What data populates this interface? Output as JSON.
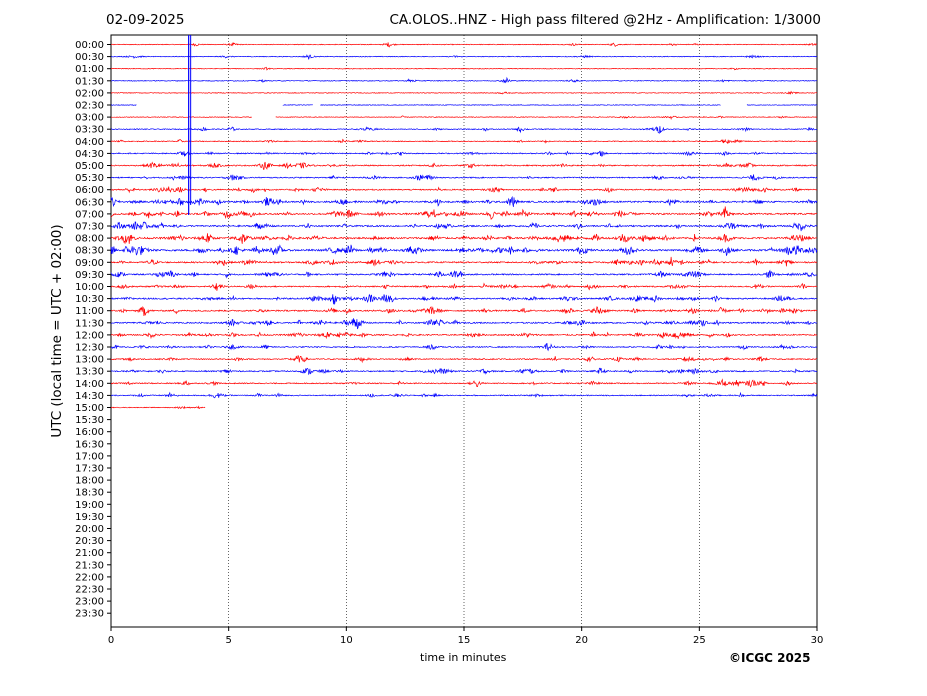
{
  "header": {
    "date": "02-09-2025",
    "station_title": "CA.OLOS..HNZ - High pass filtered @2Hz - Amplification: 1/3000"
  },
  "footer": {
    "copyright": "©ICGC 2025"
  },
  "chart_data": {
    "type": "line",
    "title": "CA.OLOS..HNZ - High pass filtered @2Hz - Amplification: 1/3000",
    "xlabel": "time in minutes",
    "ylabel": "UTC (local time = UTC + 02:00)",
    "xlim": [
      0,
      30
    ],
    "xticks": [
      0,
      5,
      10,
      15,
      20,
      25,
      30
    ],
    "grid": "vertical dotted at x ticks",
    "colors": {
      "odd": "#ff0000",
      "even": "#0000ff"
    },
    "row_labels": [
      "00:00",
      "00:30",
      "01:00",
      "01:30",
      "02:00",
      "02:30",
      "03:00",
      "03:30",
      "04:00",
      "04:30",
      "05:00",
      "05:30",
      "06:00",
      "06:30",
      "07:00",
      "07:30",
      "08:00",
      "08:30",
      "09:00",
      "09:30",
      "10:00",
      "10:30",
      "11:00",
      "11:30",
      "12:00",
      "12:30",
      "13:00",
      "13:30",
      "14:00",
      "14:30",
      "15:00",
      "15:30",
      "16:00",
      "16:30",
      "17:00",
      "17:30",
      "18:00",
      "18:30",
      "19:00",
      "19:30",
      "20:00",
      "20:30",
      "21:00",
      "21:30",
      "22:00",
      "22:30",
      "23:00",
      "23:30"
    ],
    "rows_recorded": 31,
    "last_row_end_minute": 4.0,
    "row_activity": [
      0.1,
      0.1,
      0.05,
      0.1,
      0.05,
      0.05,
      0.1,
      0.2,
      0.2,
      0.35,
      0.45,
      0.4,
      0.45,
      0.7,
      0.75,
      0.65,
      0.8,
      0.9,
      0.6,
      0.55,
      0.5,
      0.6,
      0.6,
      0.55,
      0.5,
      0.4,
      0.4,
      0.45,
      0.4,
      0.3,
      0.05
    ],
    "gaps": [
      {
        "row": "02:30",
        "from": 1.1,
        "to": 7.3
      },
      {
        "row": "02:30",
        "from": 8.6,
        "to": 8.9
      },
      {
        "row": "02:30",
        "from": 25.9,
        "to": 27.0
      },
      {
        "row": "03:00",
        "from": 6.0,
        "to": 7.0
      }
    ],
    "events": [
      {
        "row": "00:00",
        "minute": 11.8,
        "amp": 0.5
      },
      {
        "row": "00:00",
        "minute": 21.4,
        "amp": 0.4
      },
      {
        "row": "00:00",
        "minute": 3.6,
        "amp": 0.3
      },
      {
        "row": "00:30",
        "minute": 8.4,
        "amp": 0.5
      },
      {
        "row": "01:30",
        "minute": 16.8,
        "amp": 0.7
      },
      {
        "row": "02:30",
        "minute": 3.3,
        "amp": 6.0
      },
      {
        "row": "03:30",
        "minute": 5.1,
        "amp": 0.6
      },
      {
        "row": "03:30",
        "minute": 17.4,
        "amp": 0.6
      },
      {
        "row": "03:30",
        "minute": 23.3,
        "amp": 0.9
      },
      {
        "row": "04:00",
        "minute": 9.9,
        "amp": 0.5
      },
      {
        "row": "04:30",
        "minute": 3.1,
        "amp": 0.8
      },
      {
        "row": "05:00",
        "minute": 19.2,
        "amp": 0.6
      },
      {
        "row": "05:00",
        "minute": 27.1,
        "amp": 0.6
      },
      {
        "row": "06:30",
        "minute": 6.6,
        "amp": 0.8
      },
      {
        "row": "06:30",
        "minute": 17.0,
        "amp": 0.9
      },
      {
        "row": "07:00",
        "minute": 1.6,
        "amp": 0.9
      },
      {
        "row": "07:00",
        "minute": 26.1,
        "amp": 1.3
      },
      {
        "row": "08:00",
        "minute": 19.3,
        "amp": 0.8
      },
      {
        "row": "08:30",
        "minute": 6.2,
        "amp": 1.0
      },
      {
        "row": "09:00",
        "minute": 23.2,
        "amp": 0.8
      },
      {
        "row": "10:00",
        "minute": 4.5,
        "amp": 1.0
      },
      {
        "row": "10:30",
        "minute": 9.5,
        "amp": 0.7
      },
      {
        "row": "10:30",
        "minute": 23.1,
        "amp": 0.9
      },
      {
        "row": "11:00",
        "minute": 1.4,
        "amp": 1.3
      },
      {
        "row": "11:30",
        "minute": 13.6,
        "amp": 0.7
      },
      {
        "row": "11:30",
        "minute": 25.2,
        "amp": 0.7
      },
      {
        "row": "12:00",
        "minute": 9.1,
        "amp": 0.7
      },
      {
        "row": "12:30",
        "minute": 18.5,
        "amp": 0.6
      },
      {
        "row": "13:00",
        "minute": 27.6,
        "amp": 0.6
      },
      {
        "row": "13:30",
        "minute": 13.7,
        "amp": 0.6
      },
      {
        "row": "13:30",
        "minute": 20.8,
        "amp": 0.7
      },
      {
        "row": "14:00",
        "minute": 15.5,
        "amp": 0.8
      },
      {
        "row": "14:00",
        "minute": 3.2,
        "amp": 0.6
      },
      {
        "row": "14:30",
        "minute": 7.1,
        "amp": 0.5
      }
    ]
  }
}
